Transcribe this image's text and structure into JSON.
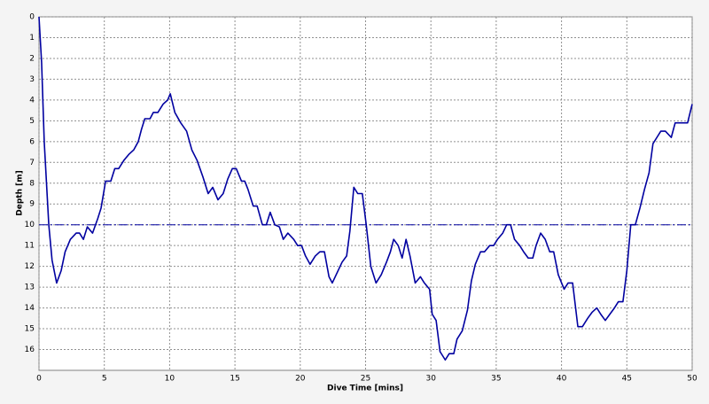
{
  "chart_data": {
    "type": "line",
    "x_label": "Dive Time [mins]",
    "y_label": "Depth [m]",
    "xlim": [
      0,
      50
    ],
    "xticks": [
      0,
      5,
      10,
      15,
      20,
      25,
      30,
      35,
      40,
      45,
      50
    ],
    "ylim": [
      0,
      17
    ],
    "yticks": [
      0,
      1,
      2,
      3,
      4,
      5,
      6,
      7,
      8,
      9,
      10,
      11,
      12,
      13,
      14,
      15,
      16
    ],
    "y_inverted": true,
    "grid": true,
    "color": "#0000a0",
    "reference_line": 10,
    "x": [
      0,
      0.2,
      0.4,
      0.75,
      1.0,
      1.35,
      1.7,
      2.0,
      2.4,
      2.85,
      3.1,
      3.4,
      3.7,
      4.1,
      4.5,
      4.75,
      5.1,
      5.5,
      5.8,
      6.1,
      6.5,
      6.9,
      7.25,
      7.6,
      7.85,
      8.1,
      8.5,
      8.75,
      9.1,
      9.5,
      9.85,
      10.05,
      10.4,
      10.85,
      11.3,
      11.7,
      12.1,
      12.55,
      12.95,
      13.3,
      13.7,
      14.1,
      14.45,
      14.8,
      15.1,
      15.5,
      15.75,
      16,
      16.4,
      16.7,
      17.1,
      17.4,
      17.7,
      18.05,
      18.4,
      18.7,
      19.05,
      19.5,
      19.8,
      20.1,
      20.4,
      20.75,
      21.15,
      21.5,
      21.85,
      22.2,
      22.45,
      22.9,
      23.2,
      23.55,
      23.8,
      24.1,
      24.4,
      24.75,
      25.05,
      25.4,
      25.8,
      26.2,
      26.6,
      26.9,
      27.15,
      27.5,
      27.8,
      28.1,
      28.4,
      28.8,
      29.2,
      29.5,
      29.9,
      30.1,
      30.4,
      30.7,
      31.1,
      31.4,
      31.75,
      32.0,
      32.4,
      32.8,
      33.1,
      33.4,
      33.8,
      34.1,
      34.5,
      34.8,
      35.1,
      35.5,
      35.8,
      36.1,
      36.4,
      36.8,
      37.1,
      37.45,
      37.8,
      38.05,
      38.4,
      38.75,
      39.1,
      39.4,
      39.75,
      40.2,
      40.5,
      40.85,
      41.25,
      41.6,
      42,
      42.35,
      42.7,
      43,
      43.35,
      43.7,
      44.05,
      44.35,
      44.7,
      45,
      45.3,
      45.65,
      46,
      46.35,
      46.7,
      47.0,
      47.3,
      47.6,
      47.95,
      48.4,
      48.7,
      49.05,
      49.4,
      49.65,
      50
    ],
    "values": [
      0,
      2.2,
      6,
      10,
      11.7,
      12.8,
      12.2,
      11.3,
      10.7,
      10.4,
      10.4,
      10.7,
      10.1,
      10.4,
      9.7,
      9.2,
      7.9,
      7.9,
      7.3,
      7.3,
      6.9,
      6.6,
      6.4,
      6,
      5.4,
      4.9,
      4.9,
      4.6,
      4.6,
      4.2,
      4,
      3.7,
      4.6,
      5.1,
      5.5,
      6.4,
      6.9,
      7.7,
      8.5,
      8.2,
      8.8,
      8.5,
      7.8,
      7.3,
      7.3,
      7.9,
      7.9,
      8.3,
      9.1,
      9.1,
      10,
      10,
      9.4,
      10,
      10.1,
      10.7,
      10.4,
      10.7,
      11,
      11,
      11.5,
      11.9,
      11.5,
      11.3,
      11.3,
      12.5,
      12.8,
      12.2,
      11.8,
      11.5,
      10.3,
      8.2,
      8.5,
      8.5,
      10,
      12,
      12.8,
      12.4,
      11.8,
      11.3,
      10.7,
      11,
      11.6,
      10.7,
      11.5,
      12.8,
      12.5,
      12.8,
      13.1,
      14.3,
      14.6,
      16.1,
      16.5,
      16.2,
      16.2,
      15.5,
      15.1,
      14.1,
      12.7,
      11.9,
      11.3,
      11.3,
      11,
      11,
      10.7,
      10.4,
      10,
      10,
      10.7,
      11,
      11.3,
      11.6,
      11.6,
      11,
      10.4,
      10.7,
      11.3,
      11.3,
      12.4,
      13.1,
      12.8,
      12.8,
      14.9,
      14.9,
      14.5,
      14.2,
      14,
      14.3,
      14.6,
      14.3,
      14,
      13.7,
      13.7,
      12.2,
      10,
      10,
      9.2,
      8.3,
      7.5,
      6.1,
      5.8,
      5.5,
      5.5,
      5.8,
      5.1,
      5.1,
      5.1,
      5.1,
      4.2
    ]
  }
}
